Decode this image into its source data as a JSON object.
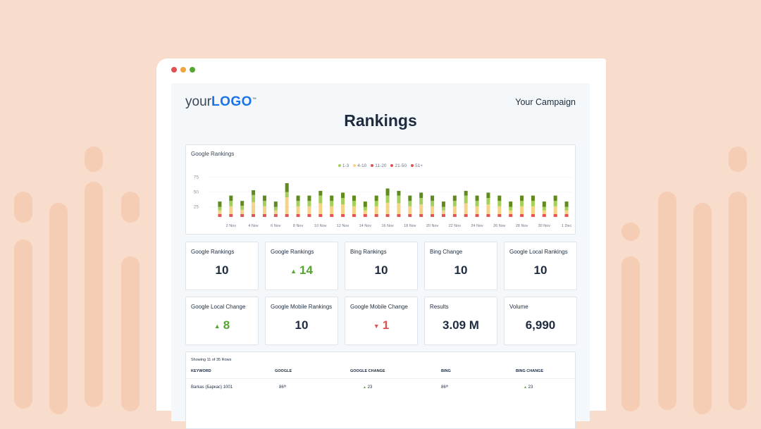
{
  "window": {
    "dots": [
      "#e05252",
      "#f0a640",
      "#55a630"
    ]
  },
  "header": {
    "logo_text_light": "your",
    "logo_text_bold": "LOGO",
    "logo_tm": "™",
    "campaign": "Your Campaign",
    "title": "Rankings"
  },
  "chart_data": {
    "type": "bar",
    "stacked": true,
    "title": "Google Rankings",
    "legend_position": "top",
    "legend": [
      {
        "name": "1-3",
        "color": "#a5cf5a"
      },
      {
        "name": "4-10",
        "color": "#f6d487"
      },
      {
        "name": "11-20",
        "color": "#e05252"
      },
      {
        "name": "21-50",
        "color": "#e05252"
      },
      {
        "name": "51+",
        "color": "#e05252"
      }
    ],
    "y_ticks": [
      25,
      50,
      75
    ],
    "ylim": [
      8,
      78
    ],
    "grid": true,
    "x_tick_labels": [
      "",
      "2 Nov",
      "",
      "4 Nov",
      "",
      "6 Nov",
      "",
      "8 Nov",
      "",
      "10 Nov",
      "",
      "12 Nov",
      "",
      "14 Nov",
      "",
      "16 Nov",
      "",
      "18 Nov",
      "",
      "20 Nov",
      "",
      "22 Nov",
      "",
      "24 Nov",
      "",
      "26 Nov",
      "",
      "28 Nov",
      "",
      "30 Nov",
      "",
      "1 Dec"
    ],
    "series": [
      {
        "name": "51+",
        "color": "#e05252",
        "values": [
          1,
          1,
          1,
          1,
          1,
          1,
          1,
          1,
          1,
          1,
          1,
          1,
          1,
          1,
          1,
          1,
          1,
          1,
          1,
          1,
          1,
          1,
          1,
          1,
          1,
          1,
          1,
          1,
          1,
          1,
          1,
          1
        ]
      },
      {
        "name": "21-50",
        "color": "#e05252",
        "values": [
          2,
          2,
          2,
          2,
          2,
          2,
          2,
          2,
          2,
          2,
          2,
          2,
          2,
          2,
          2,
          2,
          2,
          2,
          2,
          2,
          2,
          2,
          2,
          2,
          2,
          2,
          2,
          2,
          2,
          2,
          2,
          2
        ]
      },
      {
        "name": "11-20",
        "color": "#e05252",
        "values": [
          2,
          2,
          2,
          2,
          2,
          2,
          2,
          2,
          2,
          2,
          2,
          2,
          2,
          2,
          2,
          2,
          2,
          2,
          2,
          2,
          2,
          2,
          2,
          2,
          2,
          2,
          2,
          2,
          2,
          2,
          2,
          2
        ]
      },
      {
        "name": "4-10",
        "color": "#f6d487",
        "values": [
          6,
          13,
          7,
          20,
          13,
          6,
          28,
          13,
          13,
          18,
          13,
          16,
          13,
          6,
          13,
          19,
          18,
          13,
          16,
          13,
          6,
          13,
          18,
          13,
          16,
          13,
          6,
          13,
          13,
          6,
          13,
          6
        ]
      },
      {
        "name": "1-3",
        "color": "#a5cf5a",
        "values": [
          6,
          9,
          7,
          12,
          9,
          6,
          9,
          9,
          9,
          13,
          9,
          11,
          9,
          6,
          9,
          12,
          13,
          9,
          11,
          9,
          6,
          9,
          13,
          9,
          11,
          9,
          6,
          9,
          9,
          6,
          9,
          6
        ]
      },
      {
        "color": "#5e8a1f",
        "values": [
          9,
          9,
          8,
          8,
          9,
          9,
          15,
          9,
          9,
          8,
          9,
          9,
          9,
          9,
          9,
          12,
          8,
          9,
          9,
          9,
          9,
          9,
          8,
          9,
          9,
          9,
          9,
          9,
          9,
          9,
          9,
          9
        ]
      }
    ]
  },
  "kpis": [
    {
      "label": "Google Rankings",
      "value": "10",
      "trend": ""
    },
    {
      "label": "Google Rankings",
      "value": "14",
      "trend": "up"
    },
    {
      "label": "Bing Rankings",
      "value": "10",
      "trend": ""
    },
    {
      "label": "Bing Change",
      "value": "10",
      "trend": ""
    },
    {
      "label": "Google Local Rankings",
      "value": "10",
      "trend": ""
    },
    {
      "label": "Google Local Change",
      "value": "8",
      "trend": "up"
    },
    {
      "label": "Google Mobile Rankings",
      "value": "10",
      "trend": ""
    },
    {
      "label": "Google Mobile Change",
      "value": "1",
      "trend": "down"
    },
    {
      "label": "Results",
      "value": "3.09 M",
      "trend": ""
    },
    {
      "label": "Volume",
      "value": "6,990",
      "trend": ""
    }
  ],
  "table": {
    "caption": "Showing 11 of 35 Rows",
    "columns": [
      "KEYWORD",
      "GOOGLE",
      "GOOGLE CHANGE",
      "BING",
      "BING CHANGE"
    ],
    "rows": [
      {
        "keyword": "Barkas (Баркас) 1001",
        "google": "86ᵗʰ",
        "google_change": "23",
        "bing": "86ᵗʰ",
        "bing_change": "23"
      }
    ]
  }
}
